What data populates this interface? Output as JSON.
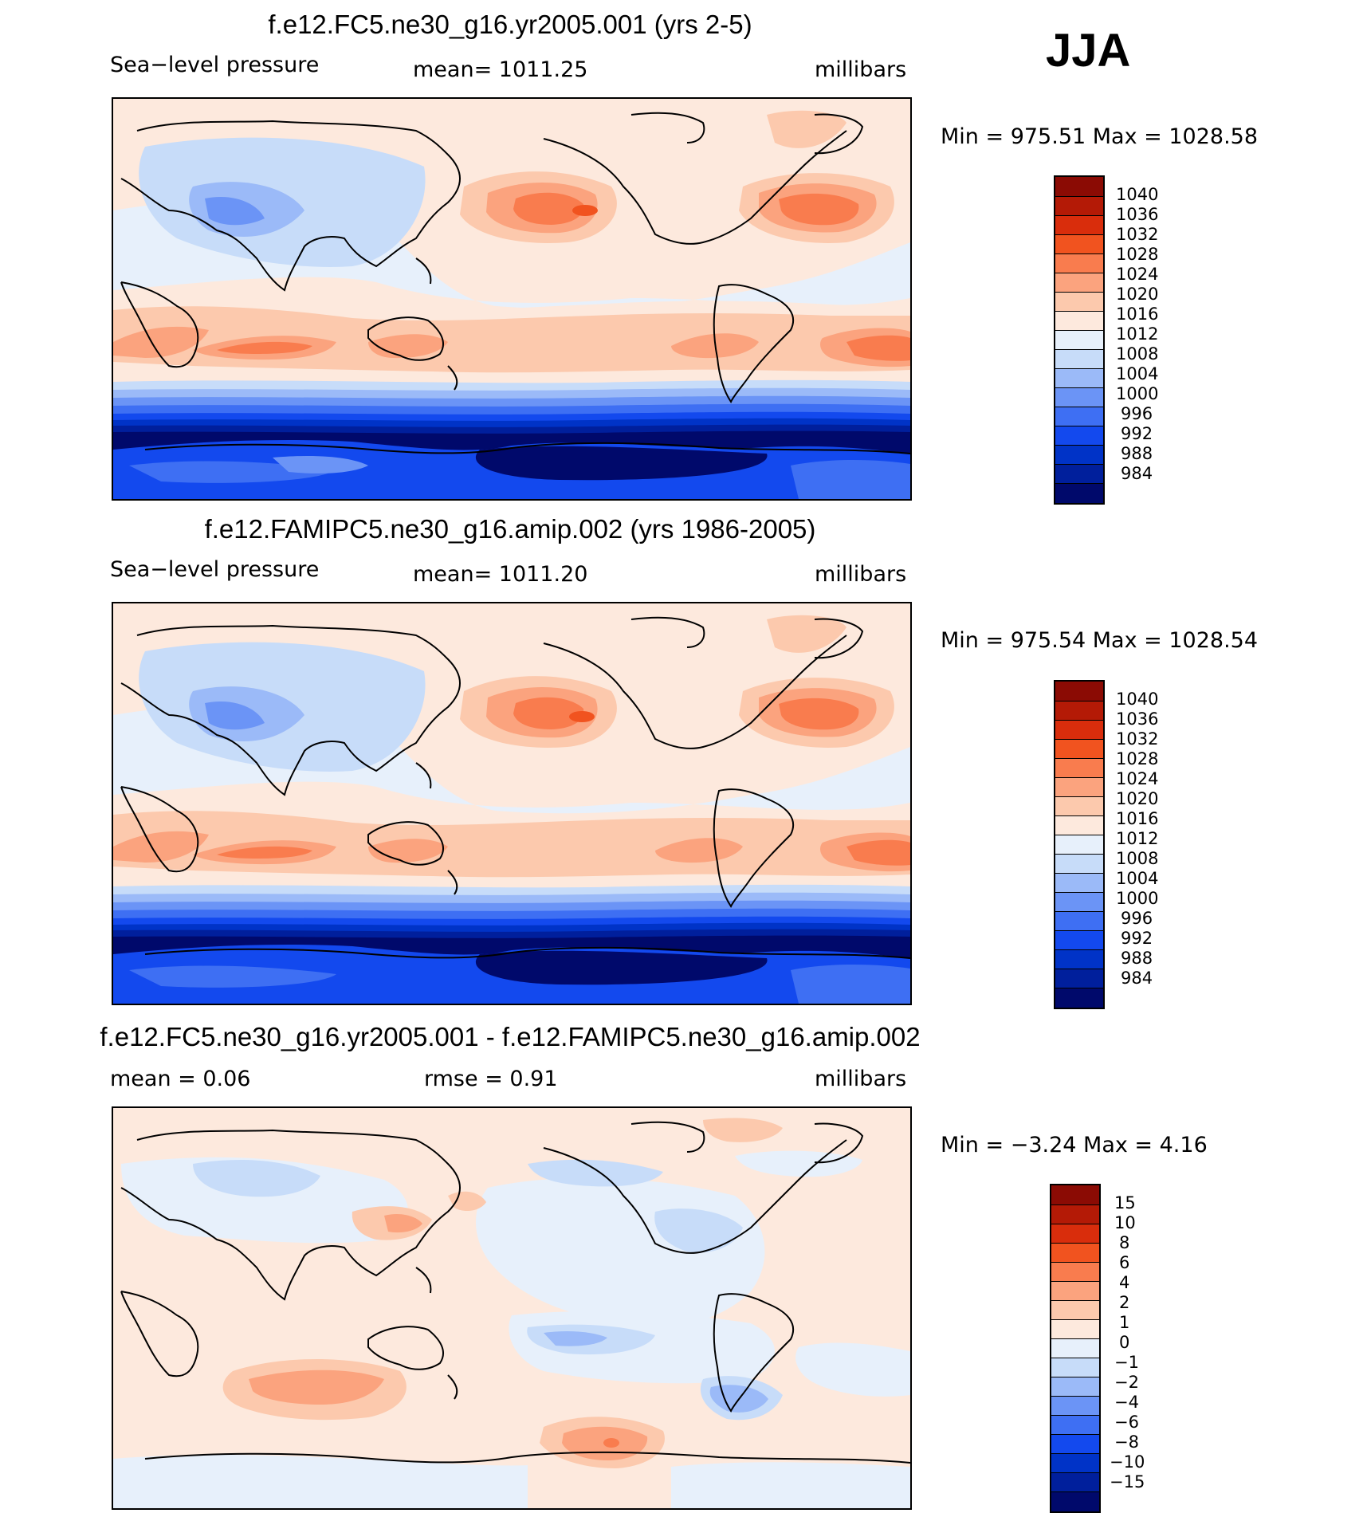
{
  "season": "JJA",
  "panels": [
    {
      "id": "test",
      "title": "f.e12.FC5.ne30_g16.yr2005.001 (yrs 2-5)",
      "left_label": "Sea−level  pressure",
      "center_label": "mean=  1011.25",
      "units": "millibars",
      "minmax": "Min  =  975.51  Max  =  1028.58"
    },
    {
      "id": "control",
      "title": "f.e12.FAMIPC5.ne30_g16.amip.002 (yrs 1986-2005)",
      "left_label": "Sea−level  pressure",
      "center_label": "mean=  1011.20",
      "units": "millibars",
      "minmax": "Min  =  975.54  Max  =  1028.54"
    },
    {
      "id": "difference",
      "title": "f.e12.FC5.ne30_g16.yr2005.001 - f.e12.FAMIPC5.ne30_g16.amip.002",
      "left_label": "mean  =      0.06",
      "center_label": "rmse  =      0.91",
      "units": "millibars",
      "minmax": "Min  =    −3.24  Max  =      4.16"
    }
  ],
  "chart_data": [
    {
      "type": "filled-contour map",
      "title": "f.e12.FC5.ne30_g16.yr2005.001 (yrs 2-5)",
      "variable": "Sea-level pressure",
      "units": "millibars",
      "mean": 1011.25,
      "min": 975.51,
      "max": 1028.58,
      "contour_levels": [
        984,
        988,
        992,
        996,
        1000,
        1004,
        1008,
        1012,
        1016,
        1020,
        1024,
        1028,
        1032,
        1036,
        1040
      ],
      "colorbar_colors": [
        "#00096b",
        "#001f9c",
        "#0033c7",
        "#1349ee",
        "#3e6ff3",
        "#6b94f6",
        "#9bbaf8",
        "#c7dcf9",
        "#e7f0fb",
        "#fde9dd",
        "#fcc9ad",
        "#fba37e",
        "#f97c4e",
        "#f1531f",
        "#d92d0c",
        "#b41a06",
        "#8b0b04"
      ]
    },
    {
      "type": "filled-contour map",
      "title": "f.e12.FAMIPC5.ne30_g16.amip.002 (yrs 1986-2005)",
      "variable": "Sea-level pressure",
      "units": "millibars",
      "mean": 1011.2,
      "min": 975.54,
      "max": 1028.54,
      "contour_levels": [
        984,
        988,
        992,
        996,
        1000,
        1004,
        1008,
        1012,
        1016,
        1020,
        1024,
        1028,
        1032,
        1036,
        1040
      ],
      "colorbar_colors": [
        "#00096b",
        "#001f9c",
        "#0033c7",
        "#1349ee",
        "#3e6ff3",
        "#6b94f6",
        "#9bbaf8",
        "#c7dcf9",
        "#e7f0fb",
        "#fde9dd",
        "#fcc9ad",
        "#fba37e",
        "#f97c4e",
        "#f1531f",
        "#d92d0c",
        "#b41a06",
        "#8b0b04"
      ]
    },
    {
      "type": "filled-contour map",
      "title": "f.e12.FC5.ne30_g16.yr2005.001 - f.e12.FAMIPC5.ne30_g16.amip.002",
      "variable": "Sea-level pressure difference",
      "units": "millibars",
      "mean": 0.06,
      "rmse": 0.91,
      "min": -3.24,
      "max": 4.16,
      "contour_levels": [
        -15,
        -10,
        -8,
        -6,
        -4,
        -2,
        -1,
        0,
        1,
        2,
        4,
        6,
        8,
        10,
        15
      ],
      "contour_labels": [
        "−15",
        "−10",
        "−8",
        "−6",
        "−4",
        "−2",
        "−1",
        "0",
        "1",
        "2",
        "4",
        "6",
        "8",
        "10",
        "15"
      ],
      "colorbar_colors": [
        "#00096b",
        "#001f9c",
        "#0033c7",
        "#1349ee",
        "#3e6ff3",
        "#6b94f6",
        "#9bbaf8",
        "#c7dcf9",
        "#e7f0fb",
        "#fde9dd",
        "#fcc9ad",
        "#fba37e",
        "#f97c4e",
        "#f1531f",
        "#d92d0c",
        "#b41a06",
        "#8b0b04"
      ]
    }
  ]
}
